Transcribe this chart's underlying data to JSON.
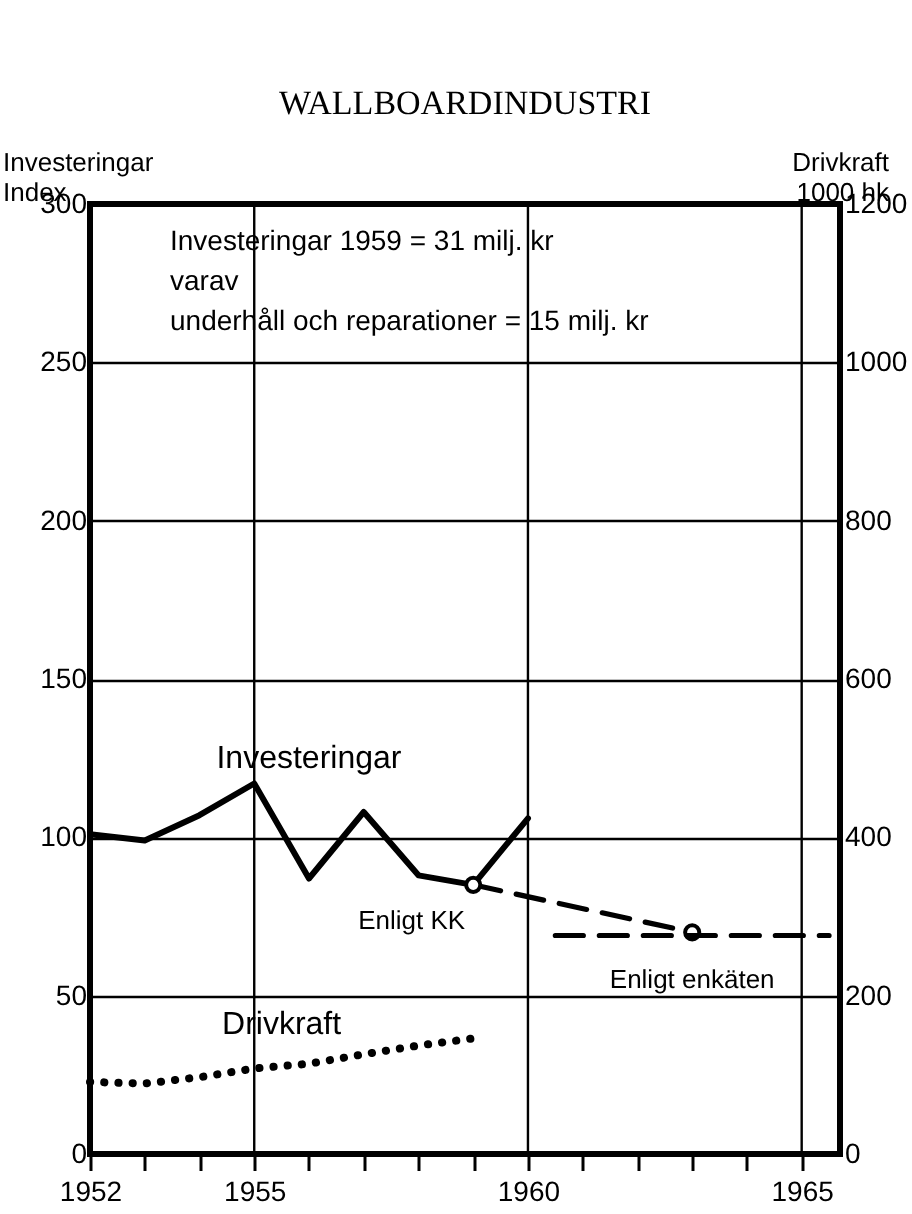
{
  "chart_data": {
    "type": "line",
    "title": "WALLBOARDINDUSTRI",
    "ylabel": "Investeringar\nIndex",
    "y2label": "Drivkraft\n1000 hk",
    "xlim": [
      1952,
      1965.7
    ],
    "xticks": [
      1952,
      {
        "value": 1953,
        "label": null
      },
      {
        "value": 1954,
        "label": null
      },
      1955,
      {
        "value": 1956,
        "label": null
      },
      {
        "value": 1957,
        "label": null
      },
      {
        "value": 1958,
        "label": null
      },
      {
        "value": 1959,
        "label": null
      },
      1960,
      {
        "value": 1961,
        "label": null
      },
      {
        "value": 1962,
        "label": null
      },
      {
        "value": 1963,
        "label": null
      },
      {
        "value": 1964,
        "label": null
      },
      1965
    ],
    "ylim": [
      0,
      300
    ],
    "yticks": [
      0,
      50,
      100,
      150,
      200,
      250,
      300
    ],
    "y2lim": [
      0,
      1200
    ],
    "y2ticks": [
      0,
      200,
      400,
      600,
      800,
      1000,
      1200
    ],
    "grid": true,
    "annotations": [
      "Investeringar 1959 = 31 milj. kr\nvarav\nunderhåll och reparationer = 15 milj. kr"
    ],
    "series": [
      {
        "name": "Investeringar",
        "color": "#000000",
        "line_style": "solid",
        "x": [
          1952,
          1953,
          1954,
          1955,
          1956,
          1957,
          1958,
          1959,
          1960
        ],
        "values": [
          101,
          99,
          107,
          117,
          87,
          108,
          88,
          85,
          106
        ]
      },
      {
        "name": "Enligt KK",
        "color": "#000000",
        "line_style": "dashed",
        "marker": "circle",
        "x": [
          1959,
          1963
        ],
        "values": [
          85,
          70
        ]
      },
      {
        "name": "Enligt enkäten",
        "color": "#000000",
        "line_style": "dashed",
        "x": [
          1960.5,
          1965.5
        ],
        "values": [
          69,
          69
        ]
      },
      {
        "name": "Drivkraft",
        "color": "#000000",
        "line_style": "dotted",
        "axis": "y2",
        "x": [
          1952,
          1953,
          1954,
          1955,
          1956,
          1957,
          1958,
          1959
        ],
        "values": [
          91,
          89,
          97,
          108,
          114,
          126,
          137,
          146
        ]
      }
    ]
  }
}
